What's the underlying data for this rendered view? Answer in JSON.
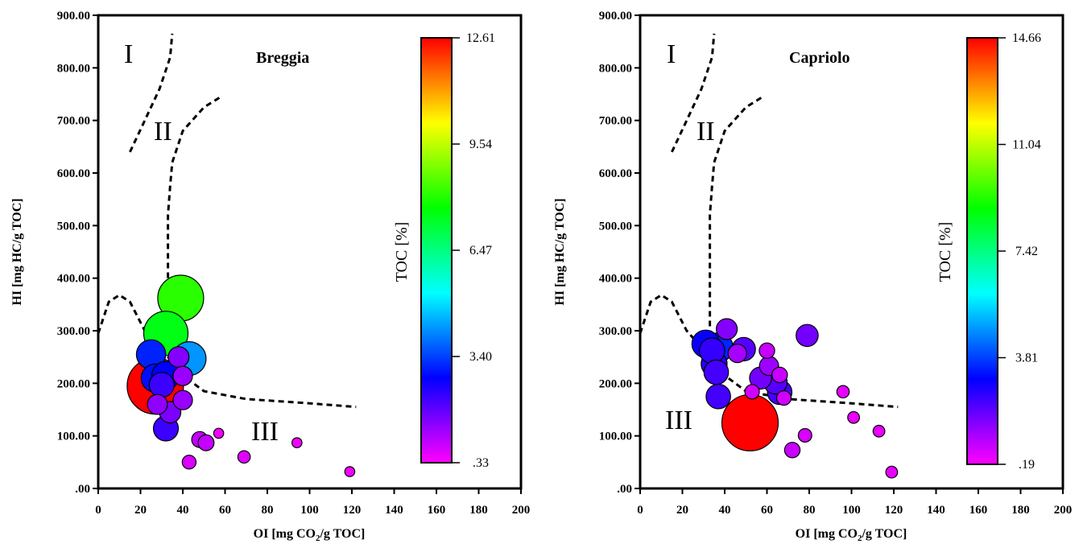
{
  "chart_data": [
    {
      "type": "scatter",
      "title": "Breggia",
      "xlabel_main": "OI [mg CO",
      "xlabel_sub": "2",
      "xlabel_tail": "/g TOC]",
      "ylabel": "HI [mg HC/g TOC]",
      "xlim": [
        0,
        200
      ],
      "ylim": [
        0,
        900
      ],
      "x_ticks": [
        "0",
        "20",
        "40",
        "60",
        "80",
        "100",
        "120",
        "140",
        "160",
        "180",
        "200"
      ],
      "y_ticks": [
        ".00",
        "100.00",
        "200.00",
        "300.00",
        "400.00",
        "500.00",
        "600.00",
        "700.00",
        "800.00",
        "900.00"
      ],
      "colorbar": {
        "label": "TOC [%]",
        "min": 0.33,
        "max": 12.61,
        "ticks": [
          "12.61",
          "9.54",
          "6.47",
          "3.40",
          ".33"
        ]
      },
      "regions": [
        "I",
        "II",
        "III"
      ],
      "size_encoding": "TOC",
      "points": [
        {
          "x": 27,
          "y": 195,
          "toc": 12.61
        },
        {
          "x": 39,
          "y": 362,
          "toc": 8.1
        },
        {
          "x": 32,
          "y": 295,
          "toc": 7.5
        },
        {
          "x": 43,
          "y": 247,
          "toc": 4.2
        },
        {
          "x": 25,
          "y": 255,
          "toc": 3.1
        },
        {
          "x": 27,
          "y": 210,
          "toc": 2.9
        },
        {
          "x": 32,
          "y": 215,
          "toc": 2.8
        },
        {
          "x": 30,
          "y": 197,
          "toc": 2.2
        },
        {
          "x": 38,
          "y": 250,
          "toc": 1.5
        },
        {
          "x": 40,
          "y": 214,
          "toc": 1.3
        },
        {
          "x": 28,
          "y": 160,
          "toc": 1.4
        },
        {
          "x": 40,
          "y": 168,
          "toc": 1.3
        },
        {
          "x": 34,
          "y": 145,
          "toc": 1.6
        },
        {
          "x": 32,
          "y": 114,
          "toc": 2.2
        },
        {
          "x": 48,
          "y": 93,
          "toc": 0.9
        },
        {
          "x": 51,
          "y": 87,
          "toc": 0.9
        },
        {
          "x": 57,
          "y": 105,
          "toc": 0.45
        },
        {
          "x": 43,
          "y": 50,
          "toc": 0.7
        },
        {
          "x": 69,
          "y": 60,
          "toc": 0.6
        },
        {
          "x": 94,
          "y": 87,
          "toc": 0.45
        },
        {
          "x": 119,
          "y": 32,
          "toc": 0.45
        }
      ]
    },
    {
      "type": "scatter",
      "title": "Capriolo",
      "xlabel_main": "OI [mg CO",
      "xlabel_sub": "2",
      "xlabel_tail": "/g TOC]",
      "ylabel": "HI [mg HC/g TOC]",
      "xlim": [
        0,
        200
      ],
      "ylim": [
        0,
        900
      ],
      "x_ticks": [
        "0",
        "20",
        "40",
        "60",
        "80",
        "100",
        "120",
        "140",
        "160",
        "180",
        "200"
      ],
      "y_ticks": [
        ".00",
        "100.00",
        "200.00",
        "300.00",
        "400.00",
        "500.00",
        "600.00",
        "700.00",
        "800.00",
        "900.00"
      ],
      "colorbar": {
        "label": "TOC [%]",
        "min": 0.19,
        "max": 14.66,
        "ticks": [
          "14.66",
          "11.04",
          "7.42",
          "3.81",
          ".19"
        ]
      },
      "regions": [
        "I",
        "III",
        "II"
      ],
      "size_encoding": "TOC",
      "points": [
        {
          "x": 52,
          "y": 125,
          "toc": 14.66
        },
        {
          "x": 31,
          "y": 275,
          "toc": 3.0
        },
        {
          "x": 37,
          "y": 268,
          "toc": 3.5
        },
        {
          "x": 34,
          "y": 262,
          "toc": 2.5
        },
        {
          "x": 35,
          "y": 237,
          "toc": 2.6
        },
        {
          "x": 36,
          "y": 221,
          "toc": 2.3
        },
        {
          "x": 37,
          "y": 175,
          "toc": 2.3
        },
        {
          "x": 41,
          "y": 303,
          "toc": 1.6
        },
        {
          "x": 49,
          "y": 265,
          "toc": 2.1
        },
        {
          "x": 46,
          "y": 257,
          "toc": 1.2
        },
        {
          "x": 60,
          "y": 262,
          "toc": 0.8
        },
        {
          "x": 61,
          "y": 233,
          "toc": 1.3
        },
        {
          "x": 57,
          "y": 210,
          "toc": 1.8
        },
        {
          "x": 64,
          "y": 202,
          "toc": 2.1
        },
        {
          "x": 66,
          "y": 216,
          "toc": 0.8
        },
        {
          "x": 66,
          "y": 183,
          "toc": 2.3
        },
        {
          "x": 68,
          "y": 172,
          "toc": 0.7
        },
        {
          "x": 79,
          "y": 291,
          "toc": 1.8
        },
        {
          "x": 53,
          "y": 184,
          "toc": 0.7
        },
        {
          "x": 78,
          "y": 101,
          "toc": 0.6
        },
        {
          "x": 72,
          "y": 73,
          "toc": 0.8
        },
        {
          "x": 96,
          "y": 184,
          "toc": 0.5
        },
        {
          "x": 101,
          "y": 135,
          "toc": 0.45
        },
        {
          "x": 113,
          "y": 109,
          "toc": 0.45
        },
        {
          "x": 119,
          "y": 31,
          "toc": 0.45
        }
      ]
    }
  ]
}
